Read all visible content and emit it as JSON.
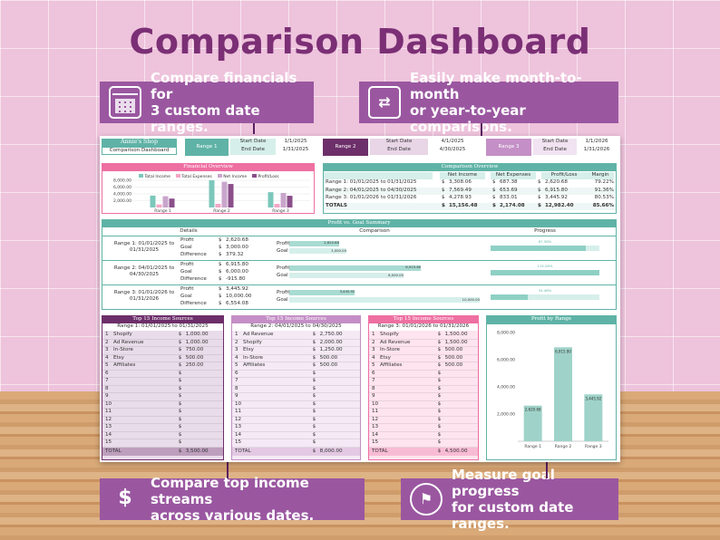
{
  "page_title": "Comparison Dashboard",
  "callouts": {
    "top_left": {
      "line1": "Compare financials for",
      "line2": "3 custom date ranges."
    },
    "top_right": {
      "line1": "Easily make month-to-month",
      "line2": "or year-to-year comparisons."
    },
    "bottom_left": {
      "line1": "Compare top income streams",
      "line2": "across various dates."
    },
    "bottom_right": {
      "line1": "Measure goal progress",
      "line2": "for custom date ranges."
    }
  },
  "shop": {
    "name": "Annie's Shop",
    "subtitle": "Comparison Dashboard"
  },
  "ranges": [
    {
      "label": "Range 1",
      "start_label": "Start Date",
      "end_label": "End Date",
      "start": "1/1/2025",
      "end": "1/31/2025"
    },
    {
      "label": "Range 2",
      "start_label": "Start Date",
      "end_label": "End Date",
      "start": "4/1/2025",
      "end": "4/30/2025"
    },
    {
      "label": "Range 3",
      "start_label": "Start Date",
      "end_label": "End Date",
      "start": "1/1/2026",
      "end": "1/31/2026"
    }
  ],
  "financial_overview": {
    "title": "Financial Overview",
    "legend": [
      "Total Income",
      "Total Expenses",
      "Net Income",
      "Profit/Loss"
    ],
    "y_ticks": [
      "8,000.00",
      "6,000.00",
      "4,000.00",
      "2,000.00"
    ],
    "categories": [
      "Range 1",
      "Range 2",
      "Range 3"
    ]
  },
  "comparison_overview": {
    "title": "Comparison Overview",
    "headers": [
      "",
      "Net Income",
      "Net Expenses",
      "Profit/Loss",
      "Margin"
    ],
    "rows": [
      [
        "Range 1: 01/01/2025 to 01/31/2025",
        "$",
        "3,308.06",
        "$",
        "687.38",
        "$",
        "2,620.68",
        "79.22%"
      ],
      [
        "Range 2: 04/01/2025 to 04/30/2025",
        "$",
        "7,569.49",
        "$",
        "653.69",
        "$",
        "6,915.80",
        "91.36%"
      ],
      [
        "Range 3: 01/01/2026 to 01/31/2026",
        "$",
        "4,278.93",
        "$",
        "833.01",
        "$",
        "3,445.92",
        "80.53%"
      ],
      [
        "TOTALS",
        "$",
        "15,156.48",
        "$",
        "2,174.08",
        "$",
        "12,982.40",
        "85.66%"
      ]
    ]
  },
  "goal_summary": {
    "title": "Profit vs. Goal Summary",
    "col_details": "Details",
    "col_comparison": "Comparison",
    "col_progress": "Progress",
    "rows": [
      {
        "range": "Range 1: 01/01/2025 to 01/31/2025",
        "profit": "2,620.68",
        "goal": "3,000.00",
        "diff": "379.32",
        "bar_profit": "2,620.68",
        "bar_goal": "3,000.00",
        "progress": "87.36%"
      },
      {
        "range": "Range 2: 04/01/2025 to 04/30/2025",
        "profit": "6,915.80",
        "goal": "6,000.00",
        "diff": "-915.80",
        "bar_profit": "6,915.80",
        "bar_goal": "6,000.00",
        "progress": "115.26%"
      },
      {
        "range": "Range 3: 01/01/2026 to 01/31/2026",
        "profit": "3,445.92",
        "goal": "10,000.00",
        "diff": "6,554.08",
        "bar_profit": "3,445.92",
        "bar_goal": "10,000.00",
        "progress": "34.46%"
      }
    ],
    "labels": {
      "profit": "Profit",
      "goal": "Goal",
      "difference": "Difference",
      "cur": "$"
    }
  },
  "income_tables": [
    {
      "title": "Top 15 Income Sources",
      "subtitle": "Range 1: 01/01/2025 to 01/31/2025",
      "items": [
        [
          "1",
          "Shopify",
          "1,000.00"
        ],
        [
          "2",
          "Ad Revenue",
          "1,000.00"
        ],
        [
          "3",
          "In-Store",
          "750.00"
        ],
        [
          "4",
          "Etsy",
          "500.00"
        ],
        [
          "5",
          "Affiliates",
          "250.00"
        ]
      ],
      "total": "3,500.00"
    },
    {
      "title": "Top 15 Income Sources",
      "subtitle": "Range 2: 04/01/2025 to 04/30/2025",
      "items": [
        [
          "1",
          "Ad Revenue",
          "2,750.00"
        ],
        [
          "2",
          "Shopify",
          "2,000.00"
        ],
        [
          "3",
          "Etsy",
          "1,250.00"
        ],
        [
          "4",
          "In-Store",
          "500.00"
        ],
        [
          "5",
          "Affiliates",
          "500.00"
        ]
      ],
      "total": "8,000.00"
    },
    {
      "title": "Top 15 Income Sources",
      "subtitle": "Range 3: 01/01/2026 to 01/31/2026",
      "items": [
        [
          "1",
          "Shopify",
          "1,500.00"
        ],
        [
          "2",
          "Ad Revenue",
          "1,500.00"
        ],
        [
          "3",
          "In-Store",
          "500.00"
        ],
        [
          "4",
          "Etsy",
          "500.00"
        ],
        [
          "5",
          "Affiliates",
          "500.00"
        ]
      ],
      "total": "4,500.00"
    }
  ],
  "total_label": "TOTAL",
  "profit_by_range": {
    "title": "Profit by Range",
    "y_ticks": [
      "8,000.00",
      "6,000.00",
      "4,000.00",
      "2,000.00"
    ],
    "categories": [
      "Range 1",
      "Range 2",
      "Range 3"
    ],
    "labels": [
      "2,620.68",
      "6,915.80",
      "3,445.92"
    ]
  },
  "chart_data": [
    {
      "type": "bar",
      "title": "Financial Overview",
      "categories": [
        "Range 1",
        "Range 2",
        "Range 3"
      ],
      "ylim": [
        0,
        8000
      ],
      "series": [
        {
          "name": "Total Income",
          "values": [
            3500,
            8000,
            4500
          ]
        },
        {
          "name": "Total Expenses",
          "values": [
            880,
            1080,
            1050
          ]
        },
        {
          "name": "Net Income",
          "values": [
            3308.06,
            7569.49,
            4278.93
          ]
        },
        {
          "name": "Profit/Loss",
          "values": [
            2620.68,
            6915.8,
            3445.92
          ]
        }
      ]
    },
    {
      "type": "bar",
      "title": "Profit by Range",
      "categories": [
        "Range 1",
        "Range 2",
        "Range 3"
      ],
      "values": [
        2620.68,
        6915.8,
        3445.92
      ],
      "ylim": [
        0,
        8000
      ]
    }
  ],
  "colors": {
    "plum": "#6d2f6a",
    "teal": "#5fb3a6",
    "mauve": "#c48fc6",
    "pink": "#ee6fa2"
  }
}
